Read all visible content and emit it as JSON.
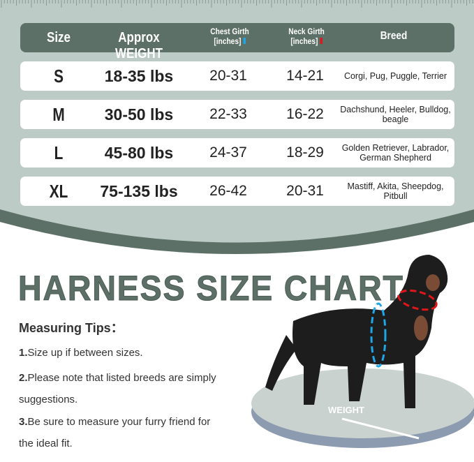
{
  "header": {
    "size": "Size",
    "weight": "Approx WEIGHT",
    "chest": "Chest Girth",
    "chest_unit": "[inches]",
    "neck": "Neck Girth",
    "neck_unit": "[inches]",
    "breed": "Breed"
  },
  "colors": {
    "chest_marker": "#1ea7e8",
    "neck_marker": "#e0161b",
    "theme": "#5d7068",
    "background": "#bccbc6"
  },
  "rows": [
    {
      "size": "S",
      "weight": "18-35 lbs",
      "chest": "20-31",
      "neck": "14-21",
      "breed": "Corgi, Pug, Puggle, Terrier"
    },
    {
      "size": "M",
      "weight": "30-50 lbs",
      "chest": "22-33",
      "neck": "16-22",
      "breed": "Dachshund, Heeler, Bulldog, beagle"
    },
    {
      "size": "L",
      "weight": "45-80 lbs",
      "chest": "24-37",
      "neck": "18-29",
      "breed": "Golden Retriever, Labrador, German Shepherd"
    },
    {
      "size": "XL",
      "weight": "75-135 lbs",
      "chest": "26-42",
      "neck": "20-31",
      "breed": "Mastiff, Akita, Sheepdog,  Pitbull"
    }
  ],
  "title": "HARNESS SIZE CHART",
  "tips": {
    "heading": "Measuring Tips：",
    "items": [
      {
        "num": "1.",
        "text": "Size up if between sizes."
      },
      {
        "num": "2.",
        "text": "Please note that listed breeds are simply suggestions."
      },
      {
        "num": "3.",
        "text": "Be sure to measure your furry friend for the ideal fit."
      }
    ]
  },
  "scale_label": "WEIGHT"
}
